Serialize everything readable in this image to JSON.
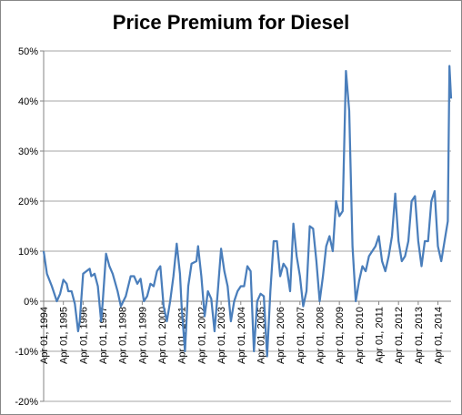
{
  "chart_data": {
    "type": "line",
    "title": "Price Premium for Diesel",
    "xlabel": "",
    "ylabel": "",
    "ylim": [
      -0.2,
      0.5
    ],
    "yticks": [
      {
        "value": 0.5,
        "label": "50%"
      },
      {
        "value": 0.4,
        "label": "40%"
      },
      {
        "value": 0.3,
        "label": "30%"
      },
      {
        "value": 0.2,
        "label": "20%"
      },
      {
        "value": 0.1,
        "label": "10%"
      },
      {
        "value": 0.0,
        "label": "0%"
      },
      {
        "value": -0.1,
        "label": "-10%"
      },
      {
        "value": -0.2,
        "label": "-20%"
      }
    ],
    "xticks": [
      "Apr 01, 1994",
      "Apr 01, 1995",
      "Apr 01, 1996",
      "Apr 01, 1997",
      "Apr 01, 1998",
      "Apr 01, 1999",
      "Apr 01, 2000",
      "Apr 01, 2001",
      "Apr 01, 2002",
      "Apr 01, 2003",
      "Apr 01, 2004",
      "Apr 01, 2005",
      "Apr 01, 2006",
      "Apr 01, 2007",
      "Apr 01, 2008",
      "Apr 01, 2009",
      "Apr 01, 2010",
      "Apr 01, 2011",
      "Apr 01, 2012",
      "Apr 01, 2013",
      "Apr 01, 2014"
    ],
    "x_start": "1994-04",
    "x_end": "2014-12",
    "grid": {
      "horizontal": true,
      "vertical": false
    },
    "colors": {
      "line": "#4a7ebb",
      "grid": "#a6a6a6",
      "axis": "#868686"
    },
    "series": [
      {
        "points": [
          [
            "1994-04",
            0.1
          ],
          [
            "1994-06",
            0.055
          ],
          [
            "1994-09",
            0.03
          ],
          [
            "1994-12",
            0.0
          ],
          [
            "1995-02",
            0.015
          ],
          [
            "1995-04",
            0.043
          ],
          [
            "1995-06",
            0.035
          ],
          [
            "1995-07",
            0.02
          ],
          [
            "1995-09",
            0.02
          ],
          [
            "1995-11",
            -0.005
          ],
          [
            "1996-01",
            -0.06
          ],
          [
            "1996-02",
            -0.04
          ],
          [
            "1996-04",
            0.055
          ],
          [
            "1996-06",
            0.06
          ],
          [
            "1996-08",
            0.065
          ],
          [
            "1996-09",
            0.05
          ],
          [
            "1996-11",
            0.055
          ],
          [
            "1997-01",
            0.03
          ],
          [
            "1997-03",
            -0.04
          ],
          [
            "1997-04",
            0.0
          ],
          [
            "1997-06",
            0.095
          ],
          [
            "1997-08",
            0.07
          ],
          [
            "1997-10",
            0.055
          ],
          [
            "1998-01",
            0.02
          ],
          [
            "1998-03",
            -0.01
          ],
          [
            "1998-06",
            0.01
          ],
          [
            "1998-09",
            0.05
          ],
          [
            "1998-11",
            0.05
          ],
          [
            "1999-01",
            0.035
          ],
          [
            "1999-03",
            0.045
          ],
          [
            "1999-05",
            0.0
          ],
          [
            "1999-07",
            0.01
          ],
          [
            "1999-09",
            0.035
          ],
          [
            "1999-11",
            0.03
          ],
          [
            "2000-01",
            0.06
          ],
          [
            "2000-03",
            0.07
          ],
          [
            "2000-05",
            -0.01
          ],
          [
            "2000-07",
            -0.04
          ],
          [
            "2000-09",
            0.0
          ],
          [
            "2000-11",
            0.05
          ],
          [
            "2001-01",
            0.115
          ],
          [
            "2001-03",
            0.055
          ],
          [
            "2001-04",
            -0.01
          ],
          [
            "2001-06",
            -0.1
          ],
          [
            "2001-08",
            0.03
          ],
          [
            "2001-10",
            0.075
          ],
          [
            "2002-01",
            0.08
          ],
          [
            "2002-02",
            0.11
          ],
          [
            "2002-04",
            0.05
          ],
          [
            "2002-06",
            -0.03
          ],
          [
            "2002-08",
            0.02
          ],
          [
            "2002-10",
            0.005
          ],
          [
            "2002-12",
            -0.06
          ],
          [
            "2003-02",
            0.02
          ],
          [
            "2003-04",
            0.105
          ],
          [
            "2003-06",
            0.06
          ],
          [
            "2003-08",
            0.03
          ],
          [
            "2003-10",
            -0.04
          ],
          [
            "2003-12",
            0.0
          ],
          [
            "2004-02",
            0.02
          ],
          [
            "2004-04",
            0.03
          ],
          [
            "2004-06",
            0.03
          ],
          [
            "2004-08",
            0.07
          ],
          [
            "2004-10",
            0.06
          ],
          [
            "2004-12",
            -0.1
          ],
          [
            "2005-02",
            0.0
          ],
          [
            "2005-04",
            0.015
          ],
          [
            "2005-06",
            0.01
          ],
          [
            "2005-08",
            -0.11
          ],
          [
            "2005-10",
            0.02
          ],
          [
            "2005-12",
            0.12
          ],
          [
            "2006-02",
            0.12
          ],
          [
            "2006-04",
            0.05
          ],
          [
            "2006-06",
            0.075
          ],
          [
            "2006-08",
            0.065
          ],
          [
            "2006-10",
            0.02
          ],
          [
            "2006-12",
            0.155
          ],
          [
            "2007-02",
            0.09
          ],
          [
            "2007-04",
            0.05
          ],
          [
            "2007-06",
            -0.01
          ],
          [
            "2007-08",
            0.02
          ],
          [
            "2007-10",
            0.15
          ],
          [
            "2007-12",
            0.145
          ],
          [
            "2008-02",
            0.08
          ],
          [
            "2008-04",
            0.0
          ],
          [
            "2008-06",
            0.05
          ],
          [
            "2008-08",
            0.11
          ],
          [
            "2008-10",
            0.13
          ],
          [
            "2008-12",
            0.1
          ],
          [
            "2009-02",
            0.2
          ],
          [
            "2009-04",
            0.17
          ],
          [
            "2009-06",
            0.18
          ],
          [
            "2009-08",
            0.46
          ],
          [
            "2009-10",
            0.38
          ],
          [
            "2009-12",
            0.11
          ],
          [
            "2010-02",
            0.0
          ],
          [
            "2010-04",
            0.04
          ],
          [
            "2010-06",
            0.07
          ],
          [
            "2010-08",
            0.06
          ],
          [
            "2010-10",
            0.09
          ],
          [
            "2010-12",
            0.1
          ],
          [
            "2011-02",
            0.11
          ],
          [
            "2011-04",
            0.13
          ],
          [
            "2011-06",
            0.08
          ],
          [
            "2011-08",
            0.06
          ],
          [
            "2011-10",
            0.09
          ],
          [
            "2011-12",
            0.13
          ],
          [
            "2012-02",
            0.215
          ],
          [
            "2012-04",
            0.12
          ],
          [
            "2012-06",
            0.08
          ],
          [
            "2012-08",
            0.09
          ],
          [
            "2012-10",
            0.12
          ],
          [
            "2012-12",
            0.2
          ],
          [
            "2013-02",
            0.21
          ],
          [
            "2013-04",
            0.12
          ],
          [
            "2013-06",
            0.07
          ],
          [
            "2013-08",
            0.12
          ],
          [
            "2013-10",
            0.12
          ],
          [
            "2013-12",
            0.2
          ],
          [
            "2014-02",
            0.22
          ],
          [
            "2014-04",
            0.11
          ],
          [
            "2014-06",
            0.08
          ],
          [
            "2014-08",
            0.12
          ],
          [
            "2014-10",
            0.16
          ],
          [
            "2014-11",
            0.47
          ],
          [
            "2014-12",
            0.405
          ]
        ]
      }
    ]
  }
}
